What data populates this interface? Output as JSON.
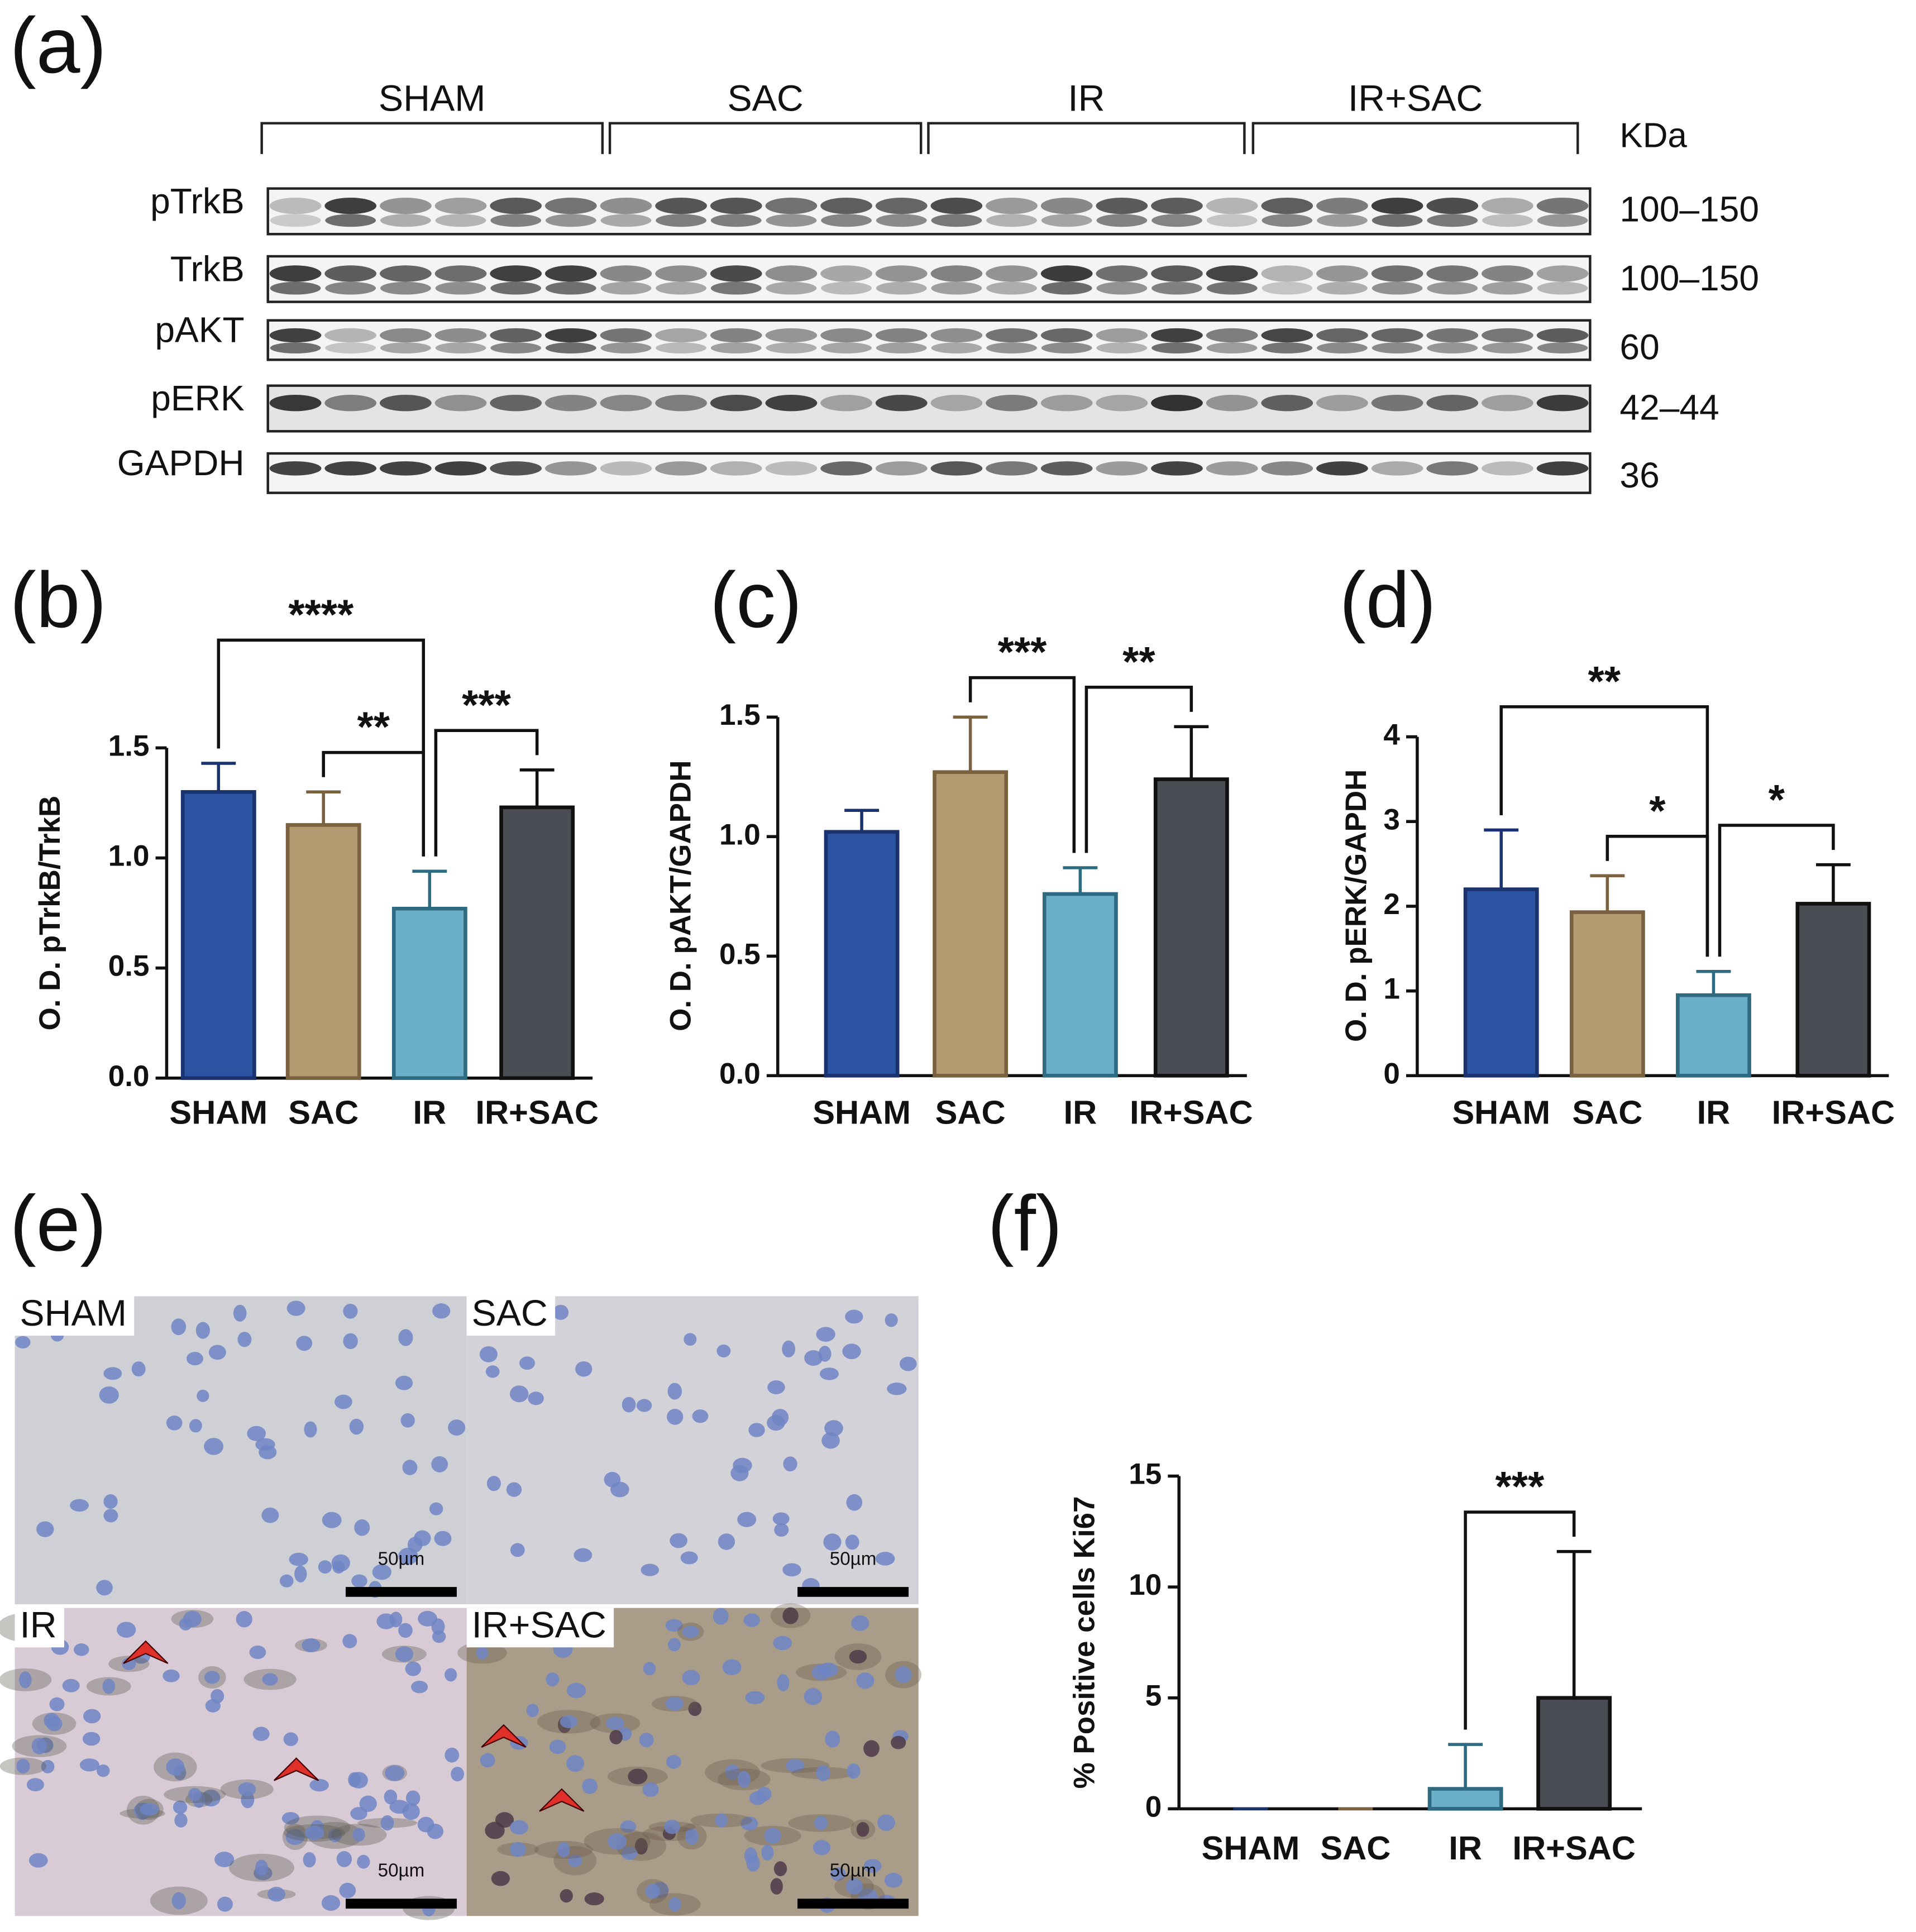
{
  "blot": {
    "panel_label": "(a)",
    "groups": [
      "SHAM",
      "SAC",
      "IR",
      "IR+SAC"
    ],
    "unit": "KDa",
    "rows": [
      {
        "protein": "pTrkB",
        "kda": "100–150"
      },
      {
        "protein": "TrkB",
        "kda": "100–150"
      },
      {
        "protein": "pAKT",
        "kda": "60"
      },
      {
        "protein": "pERK",
        "kda": "42–44"
      },
      {
        "protein": "GAPDH",
        "kda": "36"
      }
    ]
  },
  "chart_data": [
    {
      "type": "bar",
      "panel_label": "(b)",
      "y_label": "O. D. pTrkB/TrkB",
      "categories": [
        "SHAM",
        "SAC",
        "IR",
        "IR+SAC"
      ],
      "values": [
        1.3,
        1.15,
        0.77,
        1.23
      ],
      "errors": [
        0.13,
        0.15,
        0.17,
        0.17
      ],
      "colors": [
        "#2b55a3",
        "#b39a70",
        "#6aaec8",
        "#4a4d53"
      ],
      "edge_colors": [
        "#1a336e",
        "#7a6240",
        "#2f6b80",
        "#111111"
      ],
      "ylim": [
        0,
        1.5
      ],
      "yticks": [
        {
          "value": 0,
          "label": "0.0"
        },
        0.5,
        {
          "value": 1,
          "label": "1.0"
        },
        1.5
      ],
      "comparisons": [
        {
          "label": "****",
          "between": [
            "SHAM",
            "IR"
          ]
        },
        {
          "label": "**",
          "between": [
            "SAC",
            "IR"
          ]
        },
        {
          "label": "***",
          "between": [
            "IR",
            "IR+SAC"
          ]
        }
      ]
    },
    {
      "type": "bar",
      "panel_label": "(c)",
      "y_label": "O. D. pAKT/GAPDH",
      "categories": [
        "SHAM",
        "SAC",
        "IR",
        "IR+SAC"
      ],
      "values": [
        1.02,
        1.27,
        0.76,
        1.24
      ],
      "errors": [
        0.09,
        0.23,
        0.11,
        0.22
      ],
      "colors": [
        "#2b55a3",
        "#b39a70",
        "#6aaec8",
        "#4a4d53"
      ],
      "edge_colors": [
        "#1a336e",
        "#7a6240",
        "#2f6b80",
        "#111111"
      ],
      "ylim": [
        0,
        1.5
      ],
      "yticks": [
        {
          "value": 0,
          "label": "0.0"
        },
        0.5,
        {
          "value": 1,
          "label": "1.0"
        },
        1.5
      ],
      "comparisons": [
        {
          "label": "***",
          "between": [
            "SAC",
            "IR"
          ]
        },
        {
          "label": "**",
          "between": [
            "IR",
            "IR+SAC"
          ]
        }
      ]
    },
    {
      "type": "bar",
      "panel_label": "(d)",
      "y_label": "O. D. pERK/GAPDH",
      "categories": [
        "SHAM",
        "SAC",
        "IR",
        "IR+SAC"
      ],
      "values": [
        2.2,
        1.93,
        0.95,
        2.03
      ],
      "errors": [
        0.7,
        0.43,
        0.28,
        0.46
      ],
      "colors": [
        "#2b55a3",
        "#b39a70",
        "#6aaec8",
        "#4a4d53"
      ],
      "edge_colors": [
        "#1a336e",
        "#7a6240",
        "#2f6b80",
        "#111111"
      ],
      "ylim": [
        0,
        4
      ],
      "yticks": [
        0,
        1,
        2,
        3,
        4
      ],
      "comparisons": [
        {
          "label": "**",
          "between": [
            "SHAM",
            "IR"
          ]
        },
        {
          "label": "*",
          "between": [
            "SAC",
            "IR"
          ]
        },
        {
          "label": "*",
          "between": [
            "IR",
            "IR+SAC"
          ]
        }
      ]
    },
    {
      "type": "bar",
      "panel_label": "(f)",
      "y_label": "% Positive cells Ki67",
      "categories": [
        "SHAM",
        "SAC",
        "IR",
        "IR+SAC"
      ],
      "values": [
        0,
        0,
        0.9,
        5.0
      ],
      "errors": [
        0,
        0,
        2.0,
        6.6
      ],
      "colors": [
        "#2b55a3",
        "#b39a70",
        "#6aaec8",
        "#4a4d53"
      ],
      "edge_colors": [
        "#1a336e",
        "#7a6240",
        "#2f6b80",
        "#111111"
      ],
      "ylim": [
        0,
        15
      ],
      "yticks": [
        0,
        5,
        10,
        15
      ],
      "comparisons": [
        {
          "label": "***",
          "between": [
            "IR",
            "IR+SAC"
          ]
        }
      ]
    }
  ],
  "micrographs": {
    "panel_label": "(e)",
    "images": [
      {
        "label": "SHAM",
        "scale": "50µm"
      },
      {
        "label": "SAC",
        "scale": "50µm"
      },
      {
        "label": "IR",
        "scale": "50µm"
      },
      {
        "label": "IR+SAC",
        "scale": "50µm"
      }
    ]
  }
}
